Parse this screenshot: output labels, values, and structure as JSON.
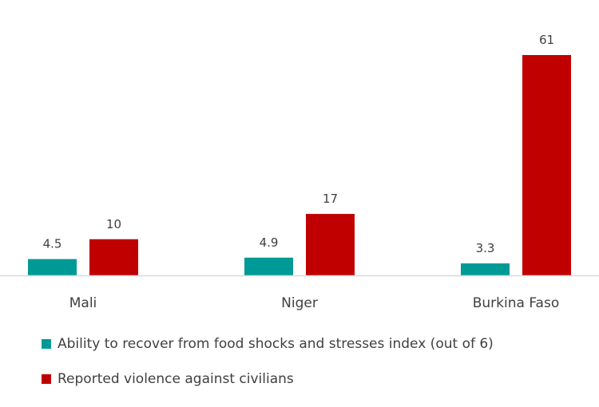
{
  "chart_data": {
    "type": "bar",
    "title": "",
    "xlabel": "",
    "ylabel": "",
    "categories": [
      "Mali",
      "Niger",
      "Burkina Faso"
    ],
    "series": [
      {
        "name": "Ability to recover from food shocks and stresses index (out of 6)",
        "color": "#009a96",
        "values": [
          4.5,
          4.9,
          3.3
        ]
      },
      {
        "name": "Reported violence against civilians",
        "color": "#c00000",
        "values": [
          10,
          17,
          61
        ]
      }
    ],
    "value_labels": [
      [
        "4.5",
        "4.9",
        "3.3"
      ],
      [
        "10",
        "17",
        "61"
      ]
    ],
    "ylim": [
      0,
      61
    ],
    "grid": false,
    "legend_position": "bottom-left",
    "axis_color": "#d9d9d9"
  }
}
